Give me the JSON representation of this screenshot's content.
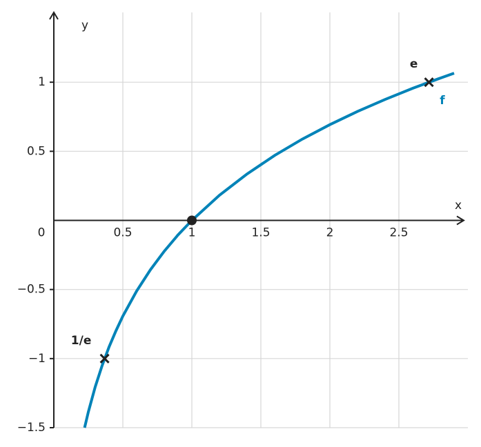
{
  "chart_data": {
    "type": "line",
    "xlabel": "x",
    "ylabel": "y",
    "xlim": [
      0,
      3
    ],
    "ylim": [
      -1.5,
      1.5
    ],
    "xticks": [
      0,
      0.5,
      1,
      1.5,
      2,
      2.5
    ],
    "yticks": [
      {
        "value": -1.5,
        "label": "−1.5"
      },
      {
        "value": -1,
        "label": "−1"
      },
      {
        "value": -0.5,
        "label": "−0.5"
      },
      0.5,
      1
    ],
    "grid": true,
    "series": [
      {
        "name": "f",
        "color": "#0083b8",
        "x": [
          0.2231,
          0.25,
          0.3,
          0.35,
          0.4,
          0.45,
          0.5,
          0.6,
          0.7,
          0.8,
          0.9,
          1,
          1.2,
          1.4,
          1.6,
          1.8,
          2,
          2.2,
          2.4,
          2.6,
          2.8,
          2.9
        ],
        "values": [
          -1.5,
          -1.386,
          -1.204,
          -1.05,
          -0.916,
          -0.799,
          -0.693,
          -0.511,
          -0.357,
          -0.223,
          -0.105,
          0,
          0.182,
          0.336,
          0.47,
          0.588,
          0.693,
          0.788,
          0.875,
          0.956,
          1.03,
          1.065
        ]
      }
    ],
    "points": [
      {
        "x": 1,
        "y": 0,
        "marker": "dot"
      },
      {
        "x": 0.368,
        "y": -1,
        "marker": "cross",
        "label": "1/e"
      },
      {
        "x": 2.718,
        "y": 1,
        "marker": "cross",
        "label": "e"
      }
    ]
  }
}
